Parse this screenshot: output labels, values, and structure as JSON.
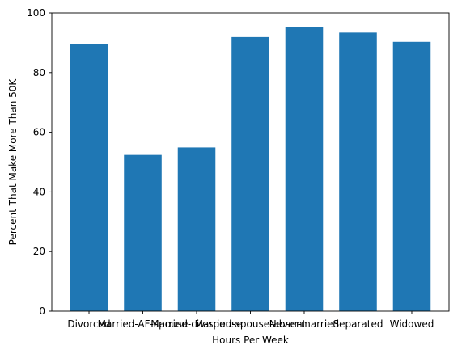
{
  "chart_data": {
    "type": "bar",
    "categories": [
      "Divorced",
      "Married-AF-spouse",
      "Married-civ-spouse",
      "Married-spouse-absent",
      "Never-married",
      "Separated",
      "Widowed"
    ],
    "values": [
      89.5,
      52.4,
      54.9,
      91.9,
      95.2,
      93.4,
      90.3
    ],
    "xlabel": "Hours Per Week",
    "ylabel": "Percent That Make More Than 50K",
    "ylim": [
      0,
      100
    ],
    "yticks": [
      "0",
      "20",
      "40",
      "60",
      "80",
      "100"
    ],
    "bar_color": "#1f77b4",
    "grid": false,
    "legend": "none"
  }
}
